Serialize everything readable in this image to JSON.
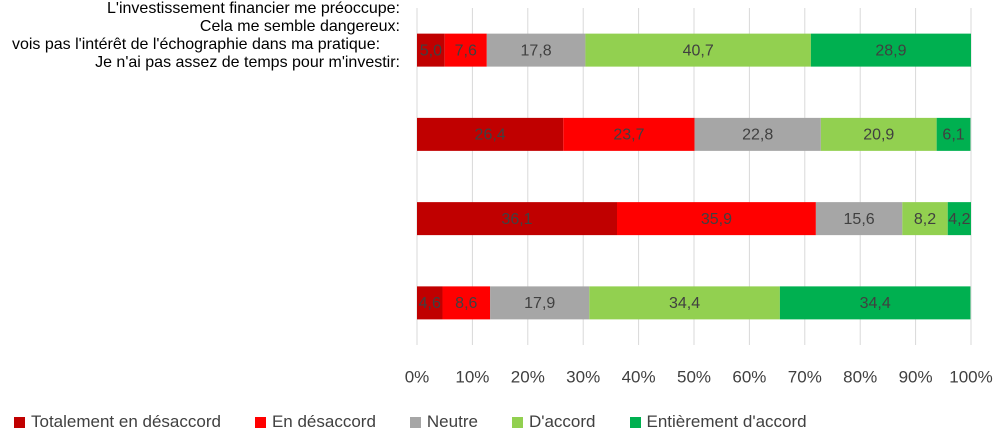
{
  "chart_data": {
    "type": "stacked-barh",
    "categories": [
      "L'investissement financier me préoccupe:",
      "Cela me semble dangereux:",
      "vois pas l'intérêt de l'échographie dans ma pratique:",
      "Je n'ai pas assez de temps pour m'investir:"
    ],
    "series": [
      {
        "name": "Totalement en désaccord",
        "color": "#c00000",
        "values": [
          5.0,
          26.4,
          36.1,
          4.6
        ],
        "value_labels": [
          "5,0",
          "26,4",
          "36,1",
          "4,6"
        ]
      },
      {
        "name": "En désaccord",
        "color": "#ff0000",
        "values": [
          7.6,
          23.7,
          35.9,
          8.6
        ],
        "value_labels": [
          "7,6",
          "23,7",
          "35,9",
          "8,6"
        ]
      },
      {
        "name": "Neutre",
        "color": "#a6a6a6",
        "values": [
          17.8,
          22.8,
          15.6,
          17.9
        ],
        "value_labels": [
          "17,8",
          "22,8",
          "15,6",
          "17,9"
        ]
      },
      {
        "name": "D'accord",
        "color": "#92d050",
        "values": [
          40.7,
          20.9,
          8.2,
          34.4
        ],
        "value_labels": [
          "40,7",
          "20,9",
          "8,2",
          "34,4"
        ]
      },
      {
        "name": "Entièrement d'accord",
        "color": "#00b050",
        "values": [
          28.9,
          6.1,
          4.2,
          34.4
        ],
        "value_labels": [
          "28,9",
          "6,1",
          "4,2",
          "34,4"
        ]
      }
    ],
    "xlim": [
      0,
      100
    ],
    "xticks": [
      {
        "value": 0,
        "label": "0%"
      },
      {
        "value": 10,
        "label": "10%"
      },
      {
        "value": 20,
        "label": "20%"
      },
      {
        "value": 30,
        "label": "30%"
      },
      {
        "value": 40,
        "label": "40%"
      },
      {
        "value": 50,
        "label": "50%"
      },
      {
        "value": 60,
        "label": "60%"
      },
      {
        "value": 70,
        "label": "70%"
      },
      {
        "value": 80,
        "label": "80%"
      },
      {
        "value": 90,
        "label": "90%"
      },
      {
        "value": 100,
        "label": "100%"
      }
    ],
    "grid": true,
    "legend": "bottom"
  }
}
